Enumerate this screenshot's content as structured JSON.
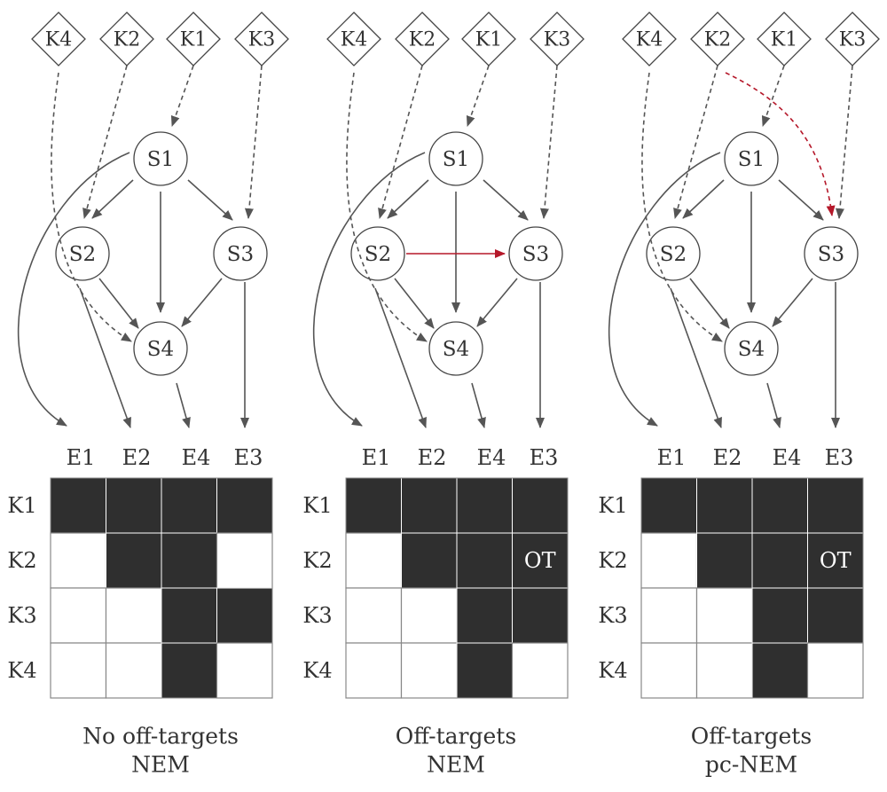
{
  "colors": {
    "edge": "#555555",
    "highlight": "#b5182a",
    "filled_cell": "#2f2f2f",
    "empty_cell": "#ffffff",
    "grid": "#888888",
    "text": "#333333"
  },
  "panels": [
    {
      "knockdowns": [
        "K4",
        "K2",
        "K1",
        "K3"
      ],
      "signals": [
        "S1",
        "S2",
        "S3",
        "S4"
      ],
      "effect_columns": [
        "E1",
        "E2",
        "E4",
        "E3"
      ],
      "rows": [
        "K1",
        "K2",
        "K3",
        "K4"
      ],
      "matrix": [
        [
          1,
          1,
          1,
          1
        ],
        [
          0,
          1,
          1,
          0
        ],
        [
          0,
          0,
          1,
          1
        ],
        [
          0,
          0,
          1,
          0
        ]
      ],
      "ot_label": "",
      "extra_edge": "none",
      "caption_line1": "No off-targets",
      "caption_line2": "NEM"
    },
    {
      "knockdowns": [
        "K4",
        "K2",
        "K1",
        "K3"
      ],
      "signals": [
        "S1",
        "S2",
        "S3",
        "S4"
      ],
      "effect_columns": [
        "E1",
        "E2",
        "E4",
        "E3"
      ],
      "rows": [
        "K1",
        "K2",
        "K3",
        "K4"
      ],
      "matrix": [
        [
          1,
          1,
          1,
          1
        ],
        [
          0,
          1,
          1,
          1
        ],
        [
          0,
          0,
          1,
          1
        ],
        [
          0,
          0,
          1,
          0
        ]
      ],
      "ot_label": "OT",
      "extra_edge": "S2→S3",
      "caption_line1": "Off-targets",
      "caption_line2": "NEM"
    },
    {
      "knockdowns": [
        "K4",
        "K2",
        "K1",
        "K3"
      ],
      "signals": [
        "S1",
        "S2",
        "S3",
        "S4"
      ],
      "effect_columns": [
        "E1",
        "E2",
        "E4",
        "E3"
      ],
      "rows": [
        "K1",
        "K2",
        "K3",
        "K4"
      ],
      "matrix": [
        [
          1,
          1,
          1,
          1
        ],
        [
          0,
          1,
          1,
          1
        ],
        [
          0,
          0,
          1,
          1
        ],
        [
          0,
          0,
          1,
          0
        ]
      ],
      "ot_label": "OT",
      "extra_edge": "K2→S3",
      "caption_line1": "Off-targets",
      "caption_line2": "pc-NEM"
    }
  ]
}
